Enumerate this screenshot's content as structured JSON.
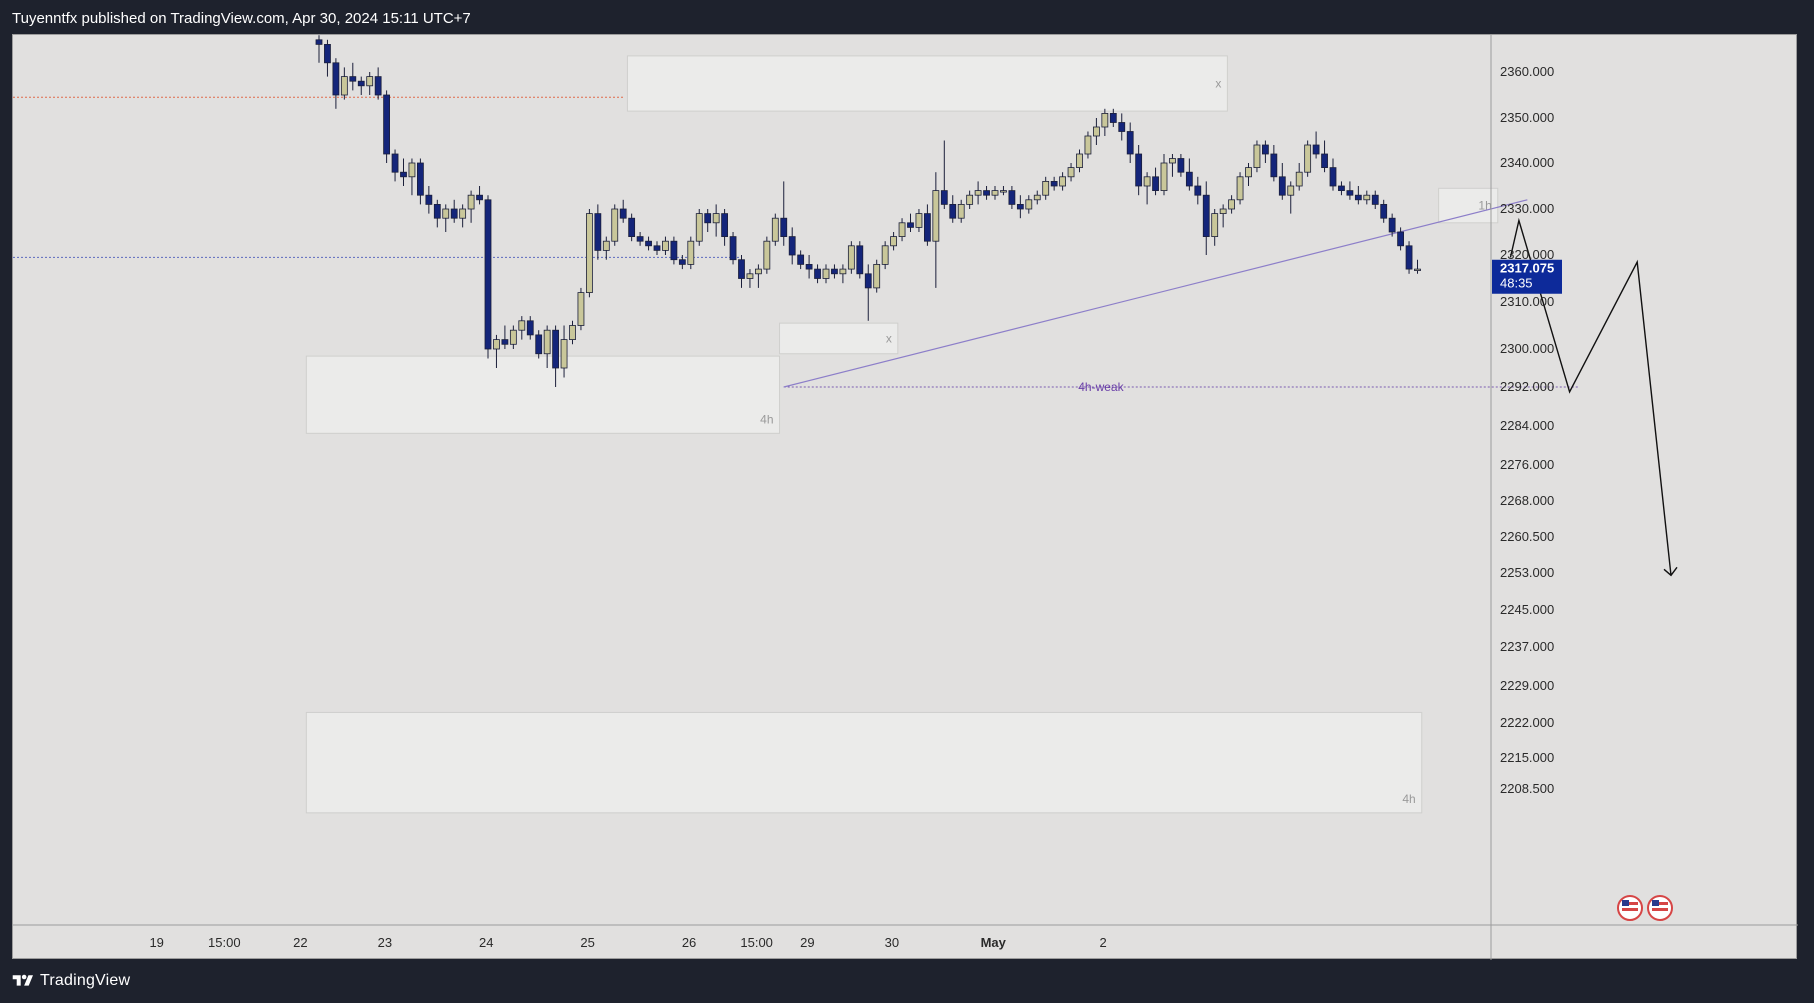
{
  "header": {
    "publisher_text": "Tuyenntfx published on TradingView.com, Apr 30, 2024 15:11 UTC+7"
  },
  "footer": {
    "brand": "TradingView",
    "logo_icon": "tradingview-logo-icon"
  },
  "colors": {
    "background": "#e1e0df",
    "bull_candle": "#c9c79a",
    "bear_candle": "#14257a",
    "trendline": "#8c7ec9",
    "price_badge": "#0d2a9a",
    "zone_fill": "#ebebea",
    "red_dotted": "#e06a4a",
    "blue_dotted": "#5b6abf",
    "weak_line": "#7a5cb0"
  },
  "chart_data": {
    "type": "candlestick",
    "title": "",
    "y_axis": {
      "ticks": [
        2360.0,
        2350.0,
        2340.0,
        2330.0,
        2320.0,
        2310.0,
        2300.0,
        2292.0,
        2284.0,
        2276.0,
        2268.0,
        2260.5,
        2253.0,
        2245.0,
        2237.0,
        2229.0,
        2222.0,
        2215.0,
        2208.5
      ],
      "tick_labels": [
        "2360.000",
        "2350.000",
        "2340.000",
        "2330.000",
        "2320.000",
        "2310.000",
        "2300.000",
        "2292.000",
        "2284.000",
        "2276.000",
        "2268.000",
        "2260.500",
        "2253.000",
        "2245.000",
        "2237.000",
        "2229.000",
        "2222.000",
        "2215.000",
        "2208.500"
      ],
      "range": [
        2205.0,
        2368.0
      ]
    },
    "x_axis": {
      "tick_labels": [
        "19",
        "15:00",
        "22",
        "23",
        "24",
        "25",
        "26",
        "15:00",
        "29",
        "30",
        "May",
        "2"
      ],
      "tick_bars": [
        6,
        14,
        23,
        33,
        45,
        57,
        69,
        77,
        83,
        93,
        105,
        118
      ]
    },
    "current_price": {
      "price_label": "2317.075",
      "countdown": "48:35",
      "value": 2317.075
    },
    "candles": [
      [
        2367,
        2368,
        2362,
        2366
      ],
      [
        2366,
        2367,
        2359,
        2362
      ],
      [
        2362,
        2363,
        2352,
        2355
      ],
      [
        2355,
        2361,
        2354,
        2359
      ],
      [
        2359,
        2362,
        2356,
        2358
      ],
      [
        2358,
        2359,
        2355,
        2357
      ],
      [
        2357,
        2360,
        2355,
        2359
      ],
      [
        2359,
        2361,
        2354,
        2355
      ],
      [
        2355,
        2356,
        2340,
        2342
      ],
      [
        2342,
        2343,
        2336,
        2338
      ],
      [
        2338,
        2341,
        2335,
        2337
      ],
      [
        2337,
        2341,
        2333,
        2340
      ],
      [
        2340,
        2341,
        2331,
        2333
      ],
      [
        2333,
        2335,
        2329,
        2331
      ],
      [
        2331,
        2332,
        2326,
        2328
      ],
      [
        2328,
        2331,
        2325,
        2330
      ],
      [
        2330,
        2332,
        2327,
        2328
      ],
      [
        2328,
        2331,
        2326,
        2330
      ],
      [
        2330,
        2334,
        2327,
        2333
      ],
      [
        2333,
        2335,
        2331,
        2332
      ],
      [
        2332,
        2333,
        2298,
        2300
      ],
      [
        2300,
        2303,
        2296,
        2302
      ],
      [
        2302,
        2305,
        2300,
        2301
      ],
      [
        2301,
        2305,
        2300,
        2304
      ],
      [
        2304,
        2307,
        2302,
        2306
      ],
      [
        2306,
        2307,
        2302,
        2303
      ],
      [
        2303,
        2304,
        2298,
        2299
      ],
      [
        2299,
        2305,
        2296,
        2304
      ],
      [
        2304,
        2305,
        2292,
        2296
      ],
      [
        2296,
        2305,
        2294,
        2302
      ],
      [
        2302,
        2306,
        2301,
        2305
      ],
      [
        2305,
        2313,
        2304,
        2312
      ],
      [
        2312,
        2330,
        2311,
        2329
      ],
      [
        2329,
        2331,
        2319,
        2321
      ],
      [
        2321,
        2324,
        2319,
        2323
      ],
      [
        2323,
        2331,
        2322,
        2330
      ],
      [
        2330,
        2332,
        2327,
        2328
      ],
      [
        2328,
        2329,
        2323,
        2324
      ],
      [
        2324,
        2325,
        2322,
        2323
      ],
      [
        2323,
        2324,
        2321,
        2322
      ],
      [
        2322,
        2323,
        2320,
        2321
      ],
      [
        2321,
        2324,
        2320,
        2323
      ],
      [
        2323,
        2324,
        2318,
        2319
      ],
      [
        2319,
        2320,
        2317,
        2318
      ],
      [
        2318,
        2324,
        2317,
        2323
      ],
      [
        2323,
        2330,
        2322,
        2329
      ],
      [
        2329,
        2330,
        2325,
        2327
      ],
      [
        2327,
        2331,
        2324,
        2329
      ],
      [
        2329,
        2330,
        2322,
        2324
      ],
      [
        2324,
        2325,
        2318,
        2319
      ],
      [
        2319,
        2320,
        2313,
        2315
      ],
      [
        2315,
        2317,
        2313,
        2316
      ],
      [
        2316,
        2318,
        2313,
        2317
      ],
      [
        2317,
        2324,
        2316,
        2323
      ],
      [
        2323,
        2329,
        2322,
        2328
      ],
      [
        2328,
        2336,
        2322,
        2324
      ],
      [
        2324,
        2326,
        2318,
        2320
      ],
      [
        2320,
        2321,
        2317,
        2318
      ],
      [
        2318,
        2320,
        2315,
        2317
      ],
      [
        2317,
        2318,
        2314,
        2315
      ],
      [
        2315,
        2318,
        2314,
        2317
      ],
      [
        2317,
        2318,
        2315,
        2316
      ],
      [
        2316,
        2318,
        2314,
        2317
      ],
      [
        2317,
        2323,
        2316,
        2322
      ],
      [
        2322,
        2323,
        2315,
        2316
      ],
      [
        2316,
        2318,
        2306,
        2313
      ],
      [
        2313,
        2319,
        2312,
        2318
      ],
      [
        2318,
        2323,
        2317,
        2322
      ],
      [
        2322,
        2325,
        2321,
        2324
      ],
      [
        2324,
        2328,
        2323,
        2327
      ],
      [
        2327,
        2329,
        2325,
        2326
      ],
      [
        2326,
        2330,
        2325,
        2329
      ],
      [
        2329,
        2331,
        2322,
        2323
      ],
      [
        2323,
        2338,
        2313,
        2334
      ],
      [
        2334,
        2345,
        2330,
        2331
      ],
      [
        2331,
        2333,
        2327,
        2328
      ],
      [
        2328,
        2332,
        2327,
        2331
      ],
      [
        2331,
        2334,
        2330,
        2333
      ],
      [
        2333,
        2336,
        2331,
        2334
      ],
      [
        2334,
        2335,
        2332,
        2333
      ],
      [
        2333,
        2335,
        2332,
        2334
      ],
      [
        2334,
        2335,
        2333,
        2334
      ],
      [
        2334,
        2335,
        2330,
        2331
      ],
      [
        2331,
        2333,
        2328,
        2330
      ],
      [
        2330,
        2333,
        2329,
        2332
      ],
      [
        2332,
        2334,
        2331,
        2333
      ],
      [
        2333,
        2337,
        2332,
        2336
      ],
      [
        2336,
        2337,
        2334,
        2335
      ],
      [
        2335,
        2338,
        2334,
        2337
      ],
      [
        2337,
        2340,
        2336,
        2339
      ],
      [
        2339,
        2343,
        2338,
        2342
      ],
      [
        2342,
        2347,
        2341,
        2346
      ],
      [
        2346,
        2350,
        2344,
        2348
      ],
      [
        2348,
        2352,
        2346,
        2351
      ],
      [
        2351,
        2352,
        2348,
        2349
      ],
      [
        2349,
        2351,
        2345,
        2347
      ],
      [
        2347,
        2349,
        2340,
        2342
      ],
      [
        2342,
        2344,
        2333,
        2335
      ],
      [
        2335,
        2338,
        2331,
        2337
      ],
      [
        2337,
        2339,
        2333,
        2334
      ],
      [
        2334,
        2342,
        2333,
        2340
      ],
      [
        2340,
        2342,
        2337,
        2341
      ],
      [
        2341,
        2342,
        2337,
        2338
      ],
      [
        2338,
        2341,
        2334,
        2335
      ],
      [
        2335,
        2337,
        2331,
        2333
      ],
      [
        2333,
        2336,
        2320,
        2324
      ],
      [
        2324,
        2330,
        2322,
        2329
      ],
      [
        2329,
        2331,
        2326,
        2330
      ],
      [
        2330,
        2333,
        2329,
        2332
      ],
      [
        2332,
        2338,
        2331,
        2337
      ],
      [
        2337,
        2340,
        2335,
        2339
      ],
      [
        2339,
        2345,
        2338,
        2344
      ],
      [
        2344,
        2345,
        2340,
        2342
      ],
      [
        2342,
        2344,
        2336,
        2337
      ],
      [
        2337,
        2340,
        2332,
        2333
      ],
      [
        2333,
        2336,
        2329,
        2335
      ],
      [
        2335,
        2340,
        2334,
        2338
      ],
      [
        2338,
        2345,
        2337,
        2344
      ],
      [
        2344,
        2347,
        2341,
        2342
      ],
      [
        2342,
        2345,
        2338,
        2339
      ],
      [
        2339,
        2341,
        2334,
        2335
      ],
      [
        2335,
        2336,
        2333,
        2334
      ],
      [
        2334,
        2336,
        2332,
        2333
      ],
      [
        2333,
        2335,
        2331,
        2332
      ],
      [
        2332,
        2334,
        2331,
        2333
      ],
      [
        2333,
        2334,
        2330,
        2331
      ],
      [
        2331,
        2332,
        2327,
        2328
      ],
      [
        2328,
        2329,
        2324,
        2325
      ],
      [
        2325,
        2326,
        2321,
        2322
      ],
      [
        2322,
        2323,
        2316,
        2317
      ],
      [
        2317,
        2319,
        2316,
        2317
      ]
    ],
    "zones": [
      {
        "name": "zone-top-supply",
        "x1": 37,
        "x2": 107,
        "y_top": 2363.5,
        "y_bot": 2351.5,
        "label": "x"
      },
      {
        "name": "zone-4h-left",
        "x1": -1,
        "x2": 54,
        "y_top": 2298.5,
        "y_bot": 2282.5,
        "label": "4h"
      },
      {
        "name": "zone-small-mid",
        "x1": 55,
        "x2": 68,
        "y_top": 2305.5,
        "y_bot": 2299.0,
        "label": "x"
      },
      {
        "name": "zone-1h",
        "x1": 133,
        "x2": 139,
        "y_top": 2334.5,
        "y_bot": 2327.0,
        "label": "1h"
      },
      {
        "name": "zone-4h-bottom",
        "x1": -1,
        "x2": 130,
        "y_top": 2224.0,
        "y_bot": 2203.5,
        "label": "4h"
      }
    ],
    "lines": {
      "red_dotted": {
        "y": 2354.5,
        "x1": -1,
        "x2": 36
      },
      "blue_dotted": {
        "y": 2319.5,
        "x1": -1,
        "x2": 50
      },
      "weak_level": {
        "y": 2292.0,
        "x1": 55,
        "x2": 149,
        "label": "4h-weak"
      },
      "trendline": {
        "x1": 55,
        "y1": 2292.0,
        "x2": 143,
        "y2": 2332.0
      }
    },
    "projection": [
      [
        141,
        2319.5
      ],
      [
        142,
        2327.5
      ],
      [
        148,
        2291.0
      ],
      [
        156,
        2318.5
      ],
      [
        160,
        2252.5
      ]
    ],
    "flag_icons": [
      "us-flag-icon",
      "us-flag-icon"
    ]
  }
}
